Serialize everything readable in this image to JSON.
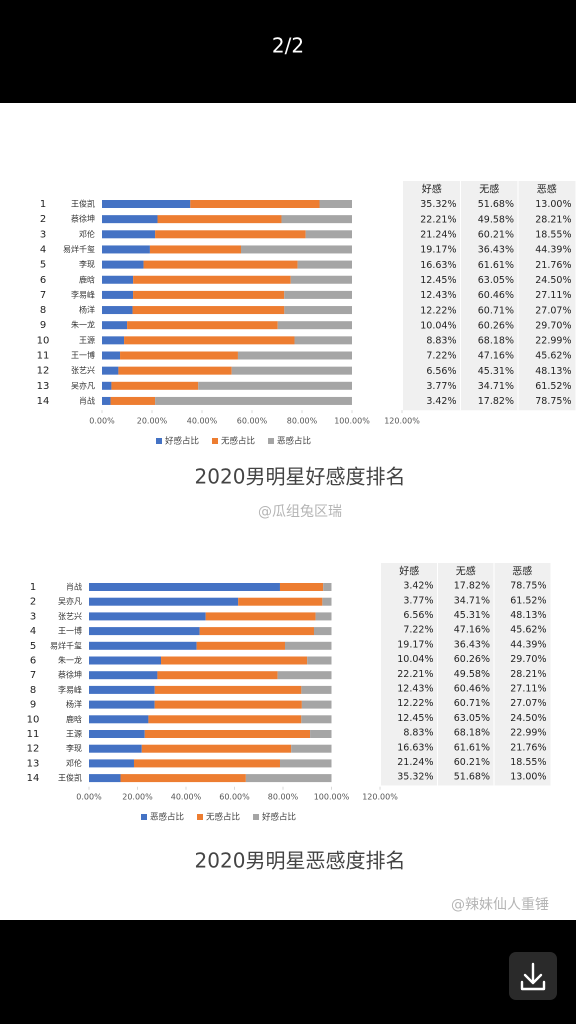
{
  "viewer": {
    "page_indicator": "2/2"
  },
  "chart_data": [
    {
      "type": "bar",
      "orientation": "horizontal",
      "stacked": true,
      "title": "2020男明星好感度排名",
      "watermark": "@瓜组兔区瑞",
      "ranks": [
        1,
        2,
        3,
        4,
        5,
        6,
        7,
        8,
        9,
        10,
        11,
        12,
        13,
        14
      ],
      "categories": [
        "王俊凯",
        "蔡徐坤",
        "邓伦",
        "易烊千玺",
        "李现",
        "鹿晗",
        "李易峰",
        "杨洋",
        "朱一龙",
        "王源",
        "王一博",
        "张艺兴",
        "吴亦凡",
        "肖战"
      ],
      "series": [
        {
          "name": "好感占比",
          "color": "#4472c4",
          "values": [
            35.32,
            22.21,
            21.24,
            19.17,
            16.63,
            12.45,
            12.43,
            12.22,
            10.04,
            8.83,
            7.22,
            6.56,
            3.77,
            3.42
          ],
          "value_labels": [
            "35.32%",
            "22.21%",
            "21.24%",
            "19.17%",
            "16.63%",
            "12.45%",
            "12.43%",
            "12.22%",
            "10.04%",
            "8.83%",
            "7.22%",
            "6.56%",
            "3.77%",
            "3.42%"
          ]
        },
        {
          "name": "无感占比",
          "color": "#ed7d31",
          "values": [
            51.68,
            49.58,
            60.21,
            36.43,
            61.61,
            63.05,
            60.46,
            60.71,
            60.26,
            68.18,
            47.16,
            45.31,
            34.71,
            17.82
          ],
          "value_labels": [
            "51.68%",
            "49.58%",
            "60.21%",
            "36.43%",
            "61.61%",
            "63.05%",
            "60.46%",
            "60.71%",
            "60.26%",
            "68.18%",
            "47.16%",
            "45.31%",
            "34.71%",
            "17.82%"
          ]
        },
        {
          "name": "恶感占比",
          "color": "#a5a5a5",
          "values": [
            13.0,
            28.21,
            18.55,
            44.39,
            21.76,
            24.5,
            27.11,
            27.07,
            29.7,
            22.99,
            45.62,
            48.13,
            61.52,
            78.75
          ],
          "value_labels": [
            "13.00%",
            "28.21%",
            "18.55%",
            "44.39%",
            "21.76%",
            "24.50%",
            "27.11%",
            "27.07%",
            "29.70%",
            "22.99%",
            "45.62%",
            "48.13%",
            "61.52%",
            "78.75%"
          ]
        }
      ],
      "xlim": [
        0,
        120
      ],
      "xticks": [
        {
          "value": 0,
          "label": "0.00%"
        },
        {
          "value": 20,
          "label": "20.00%"
        },
        {
          "value": 40,
          "label": "40.00%"
        },
        {
          "value": 60,
          "label": "60.00%"
        },
        {
          "value": 80,
          "label": "80.00%"
        },
        {
          "value": 100,
          "label": "100.00%"
        },
        {
          "value": 120,
          "label": "120.00%"
        }
      ],
      "legend": "bottom",
      "table_headers": [
        "好感",
        "无感",
        "恶感"
      ]
    },
    {
      "type": "bar",
      "orientation": "horizontal",
      "stacked": true,
      "title": "2020男明星恶感度排名",
      "watermark": "@辣妹仙人重锤",
      "ranks": [
        1,
        2,
        3,
        4,
        5,
        6,
        7,
        8,
        9,
        10,
        11,
        12,
        13,
        14
      ],
      "categories": [
        "肖战",
        "吴亦凡",
        "张艺兴",
        "王一博",
        "易烊千玺",
        "朱一龙",
        "蔡徐坤",
        "李易峰",
        "杨洋",
        "鹿晗",
        "王源",
        "李现",
        "邓伦",
        "王俊凯"
      ],
      "series": [
        {
          "name": "恶感占比",
          "color": "#4472c4",
          "values": [
            78.75,
            61.52,
            48.13,
            45.62,
            44.39,
            29.7,
            28.21,
            27.11,
            27.07,
            24.5,
            22.99,
            21.76,
            18.55,
            13.0
          ],
          "value_labels": [
            "78.75%",
            "61.52%",
            "48.13%",
            "45.62%",
            "44.39%",
            "29.70%",
            "28.21%",
            "27.11%",
            "27.07%",
            "24.50%",
            "22.99%",
            "21.76%",
            "18.55%",
            "13.00%"
          ]
        },
        {
          "name": "无感占比",
          "color": "#ed7d31",
          "values": [
            17.82,
            34.71,
            45.31,
            47.16,
            36.43,
            60.26,
            49.58,
            60.46,
            60.71,
            63.05,
            68.18,
            61.61,
            60.21,
            51.68
          ],
          "value_labels": [
            "17.82%",
            "34.71%",
            "45.31%",
            "47.16%",
            "36.43%",
            "60.26%",
            "49.58%",
            "60.46%",
            "60.71%",
            "63.05%",
            "68.18%",
            "61.61%",
            "60.21%",
            "51.68%"
          ]
        },
        {
          "name": "好感占比",
          "color": "#a5a5a5",
          "values": [
            3.42,
            3.77,
            6.56,
            7.22,
            19.17,
            10.04,
            22.21,
            12.43,
            12.22,
            12.45,
            8.83,
            16.63,
            21.24,
            35.32
          ],
          "value_labels": [
            "3.42%",
            "3.77%",
            "6.56%",
            "7.22%",
            "19.17%",
            "10.04%",
            "22.21%",
            "12.43%",
            "12.22%",
            "12.45%",
            "8.83%",
            "16.63%",
            "21.24%",
            "35.32%"
          ]
        }
      ],
      "xlim": [
        0,
        120
      ],
      "xticks": [
        {
          "value": 0,
          "label": "0.00%"
        },
        {
          "value": 20,
          "label": "20.00%"
        },
        {
          "value": 40,
          "label": "40.00%"
        },
        {
          "value": 60,
          "label": "60.00%"
        },
        {
          "value": 80,
          "label": "80.00%"
        },
        {
          "value": 100,
          "label": "100.00%"
        },
        {
          "value": 120,
          "label": "120.00%"
        }
      ],
      "legend": "bottom",
      "table_headers": [
        "好感",
        "无感",
        "恶感"
      ]
    }
  ]
}
